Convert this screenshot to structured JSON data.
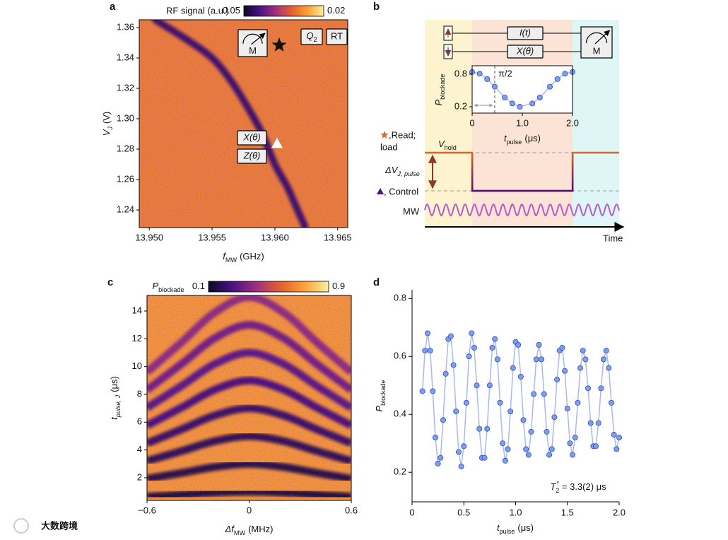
{
  "figure_labels": [
    "a",
    "b",
    "c",
    "d"
  ],
  "watermark": "大数跨境",
  "chart_data": [
    {
      "type": "heatmap",
      "colorbar_label": "RF signal (a.u.)",
      "clim": [
        0.05,
        0.02
      ],
      "colormap": [
        "#0d0829",
        "#4a1283",
        "#a1307e",
        "#e4602f",
        "#fca336",
        "#f9f1a0"
      ],
      "background_value": 0.029,
      "resonance": {
        "x": [
          13.9505,
          13.953,
          13.955,
          13.9565,
          13.9578,
          13.959,
          13.96,
          13.961,
          13.9618,
          13.9624
        ],
        "y": [
          1.365,
          1.352,
          1.34,
          1.325,
          1.308,
          1.29,
          1.27,
          1.255,
          1.24,
          1.229
        ],
        "value": 0.046
      },
      "xlim": [
        13.9492,
        13.9658
      ],
      "xticks": [
        {
          "value": 13.95,
          "label": "13.950"
        },
        13.955,
        {
          "value": 13.96,
          "label": "13.960"
        },
        13.965
      ],
      "ylim": [
        1.2284,
        1.3651
      ],
      "yticks": [
        1.24,
        1.26,
        1.28,
        {
          "value": 1.3,
          "label": "1.30"
        },
        1.32,
        1.34,
        1.36
      ],
      "xlabel": {
        "main": "f",
        "sub": "MW",
        "unit": "(GHz)"
      },
      "ylabel": {
        "main": "V",
        "sub": "J",
        "unit": "(V)"
      },
      "annotations": {
        "meter": "M",
        "qubit": {
          "main": "Q",
          "sub": "2"
        },
        "rt": "RT",
        "x_gate": "X(θ)",
        "z_gate": "Z(θ)"
      }
    },
    {
      "type": "line",
      "x": [
        0,
        0.15,
        0.3,
        0.45,
        0.65,
        0.8,
        0.95,
        1.2,
        1.35,
        1.55,
        1.7,
        1.85,
        2.0
      ],
      "values": [
        0.84,
        0.81,
        0.71,
        0.57,
        0.37,
        0.26,
        0.2,
        0.26,
        0.37,
        0.57,
        0.71,
        0.81,
        0.84
      ],
      "color": "#7e9cf0",
      "xlim": [
        0,
        2
      ],
      "xticks": [
        0,
        {
          "value": 1,
          "label": "1.0"
        },
        {
          "value": 2,
          "label": "2.0"
        }
      ],
      "ylim": [
        0.083,
        0.956
      ],
      "yticks": [
        0.2,
        0.8
      ],
      "xlabel": {
        "main": "t",
        "sub": "pulse",
        "unit": "(μs)"
      },
      "ylabel": {
        "main": "P",
        "sub": "blockade"
      },
      "marker_line": {
        "x": 0.45,
        "label": "π/2"
      },
      "diagram": {
        "gates": [
          "I(t)",
          "X(θ)"
        ],
        "meter": "M",
        "read": [
          ",Read;",
          "load"
        ],
        "hold": {
          "main": "V",
          "sub": "hold"
        },
        "pulse": {
          "main": "ΔV",
          "sub": "J, pulse"
        },
        "control": ", Control",
        "mw": "MW",
        "time": "Time"
      }
    },
    {
      "type": "heatmap",
      "colorbar_label": {
        "main": "P",
        "sub": "blockade"
      },
      "clim": [
        0.1,
        0.9
      ],
      "colormap": [
        "#0d0829",
        "#4a1283",
        "#a1307e",
        "#e4602f",
        "#fca336",
        "#f9f1a0"
      ],
      "background_value": 0.72,
      "xlim": [
        -0.6,
        0.6
      ],
      "xticks": [
        {
          "value": -0.6,
          "label": "−0.6"
        },
        0,
        0.6
      ],
      "ylim": [
        0.37,
        15.12
      ],
      "yticks": [
        2,
        4,
        6,
        8,
        10,
        12,
        14
      ],
      "xlabel": {
        "main": "Δf",
        "sub": "MW",
        "unit": "(MHz)"
      },
      "ylabel": {
        "main": "t",
        "sub": "pulse, J",
        "unit": "(μs)"
      },
      "fringe_x": [
        -0.6,
        -0.4,
        -0.2,
        0,
        0.2,
        0.4,
        0.6
      ],
      "fringes": [
        {
          "value": 0.12,
          "t": [
            0.64,
            0.78,
            0.93,
            1.0,
            0.93,
            0.78,
            0.64
          ]
        },
        {
          "value": 0.14,
          "t": [
            1.92,
            2.34,
            2.78,
            3.0,
            2.78,
            2.34,
            1.92
          ]
        },
        {
          "value": 0.17,
          "t": [
            3.2,
            3.91,
            4.64,
            5.0,
            4.64,
            3.91,
            3.2
          ]
        },
        {
          "value": 0.2,
          "t": [
            4.48,
            5.47,
            6.49,
            7.0,
            6.49,
            5.47,
            4.48
          ]
        },
        {
          "value": 0.24,
          "t": [
            5.76,
            7.03,
            8.35,
            9.0,
            8.35,
            7.03,
            5.76
          ]
        },
        {
          "value": 0.28,
          "t": [
            7.04,
            8.59,
            10.2,
            11.0,
            10.2,
            8.59,
            7.04
          ]
        },
        {
          "value": 0.33,
          "t": [
            8.32,
            10.16,
            12.06,
            13.0,
            12.06,
            10.16,
            8.32
          ]
        },
        {
          "value": 0.38,
          "t": [
            9.6,
            11.72,
            13.91,
            15.0,
            13.91,
            11.72,
            9.6
          ]
        }
      ]
    },
    {
      "type": "scatter",
      "x": [
        0.1,
        0.125,
        0.15,
        0.175,
        0.2,
        0.225,
        0.25,
        0.275,
        0.3,
        0.325,
        0.35,
        0.375,
        0.4,
        0.425,
        0.45,
        0.475,
        0.5,
        0.525,
        0.55,
        0.575,
        0.6,
        0.625,
        0.65,
        0.675,
        0.7,
        0.725,
        0.75,
        0.775,
        0.8,
        0.825,
        0.85,
        0.875,
        0.9,
        0.925,
        0.95,
        0.975,
        1.0,
        1.025,
        1.05,
        1.075,
        1.1,
        1.125,
        1.15,
        1.175,
        1.2,
        1.225,
        1.25,
        1.275,
        1.3,
        1.325,
        1.35,
        1.375,
        1.4,
        1.425,
        1.45,
        1.475,
        1.5,
        1.525,
        1.55,
        1.575,
        1.6,
        1.625,
        1.65,
        1.675,
        1.7,
        1.725,
        1.75,
        1.775,
        1.8,
        1.825,
        1.85,
        1.875,
        1.9,
        1.925,
        1.95,
        1.975,
        2.0
      ],
      "values": [
        0.48,
        0.62,
        0.68,
        0.62,
        0.48,
        0.32,
        0.23,
        0.25,
        0.38,
        0.54,
        0.66,
        0.67,
        0.57,
        0.41,
        0.27,
        0.22,
        0.29,
        0.44,
        0.6,
        0.68,
        0.63,
        0.5,
        0.35,
        0.25,
        0.25,
        0.35,
        0.5,
        0.63,
        0.66,
        0.59,
        0.44,
        0.3,
        0.24,
        0.28,
        0.41,
        0.56,
        0.65,
        0.64,
        0.53,
        0.38,
        0.28,
        0.26,
        0.34,
        0.47,
        0.59,
        0.64,
        0.59,
        0.47,
        0.34,
        0.26,
        0.28,
        0.39,
        0.52,
        0.62,
        0.63,
        0.55,
        0.42,
        0.3,
        0.26,
        0.32,
        0.44,
        0.56,
        0.62,
        0.59,
        0.49,
        0.37,
        0.29,
        0.29,
        0.37,
        0.49,
        0.59,
        0.62,
        0.56,
        0.44,
        0.33,
        0.28,
        0.32
      ],
      "color": "#7e9cf0",
      "xlim": [
        0,
        2
      ],
      "xticks": [
        0,
        0.5,
        {
          "value": 1,
          "label": "1.0"
        },
        1.5,
        {
          "value": 2,
          "label": "2.0"
        }
      ],
      "ylim": [
        0.098,
        0.83
      ],
      "yticks": [
        0.2,
        0.4,
        0.6,
        0.8
      ],
      "xlabel": {
        "main": "t",
        "sub": "pulse",
        "unit": "(μs)"
      },
      "ylabel": {
        "main": "P",
        "sub": "blockade"
      },
      "annotation": {
        "main": "T",
        "sub": "2",
        "sup": "*",
        "unit": "= 3.3(2) μs"
      }
    }
  ]
}
